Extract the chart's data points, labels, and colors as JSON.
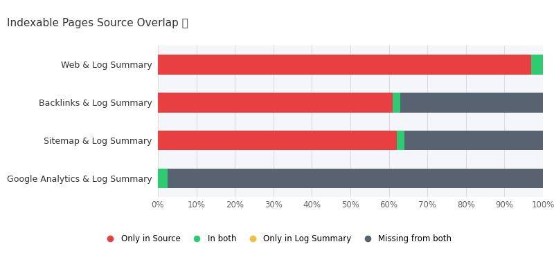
{
  "title": "Indexable Pages Source Overlap ⓘ",
  "categories": [
    "Web & Log Summary",
    "Backlinks & Log Summary",
    "Sitemap & Log Summary",
    "Google Analytics & Log Summary"
  ],
  "series": {
    "Only in Source": [
      97.0,
      61.0,
      62.0,
      0.0
    ],
    "In both": [
      3.0,
      2.0,
      2.0,
      2.5
    ],
    "Only in Log Summary": [
      0.0,
      0.0,
      0.0,
      0.0
    ],
    "Missing from both": [
      0.0,
      37.0,
      36.0,
      97.5
    ]
  },
  "colors": {
    "Only in Source": "#e84040",
    "In both": "#2ecc71",
    "Only in Log Summary": "#f0c040",
    "Missing from both": "#596270"
  },
  "outer_bg": "#eef0f5",
  "card_bg": "#ffffff",
  "plot_bg": "#f5f6fa",
  "xlim": [
    0,
    100
  ],
  "xtick_labels": [
    "0%",
    "10%",
    "20%",
    "30%",
    "40%",
    "50%",
    "60%",
    "70%",
    "80%",
    "90%",
    "100%"
  ],
  "xtick_values": [
    0,
    10,
    20,
    30,
    40,
    50,
    60,
    70,
    80,
    90,
    100
  ],
  "bar_height": 0.52,
  "label_fontsize": 9,
  "tick_fontsize": 8.5,
  "legend_fontsize": 8.5,
  "title_fontsize": 11
}
